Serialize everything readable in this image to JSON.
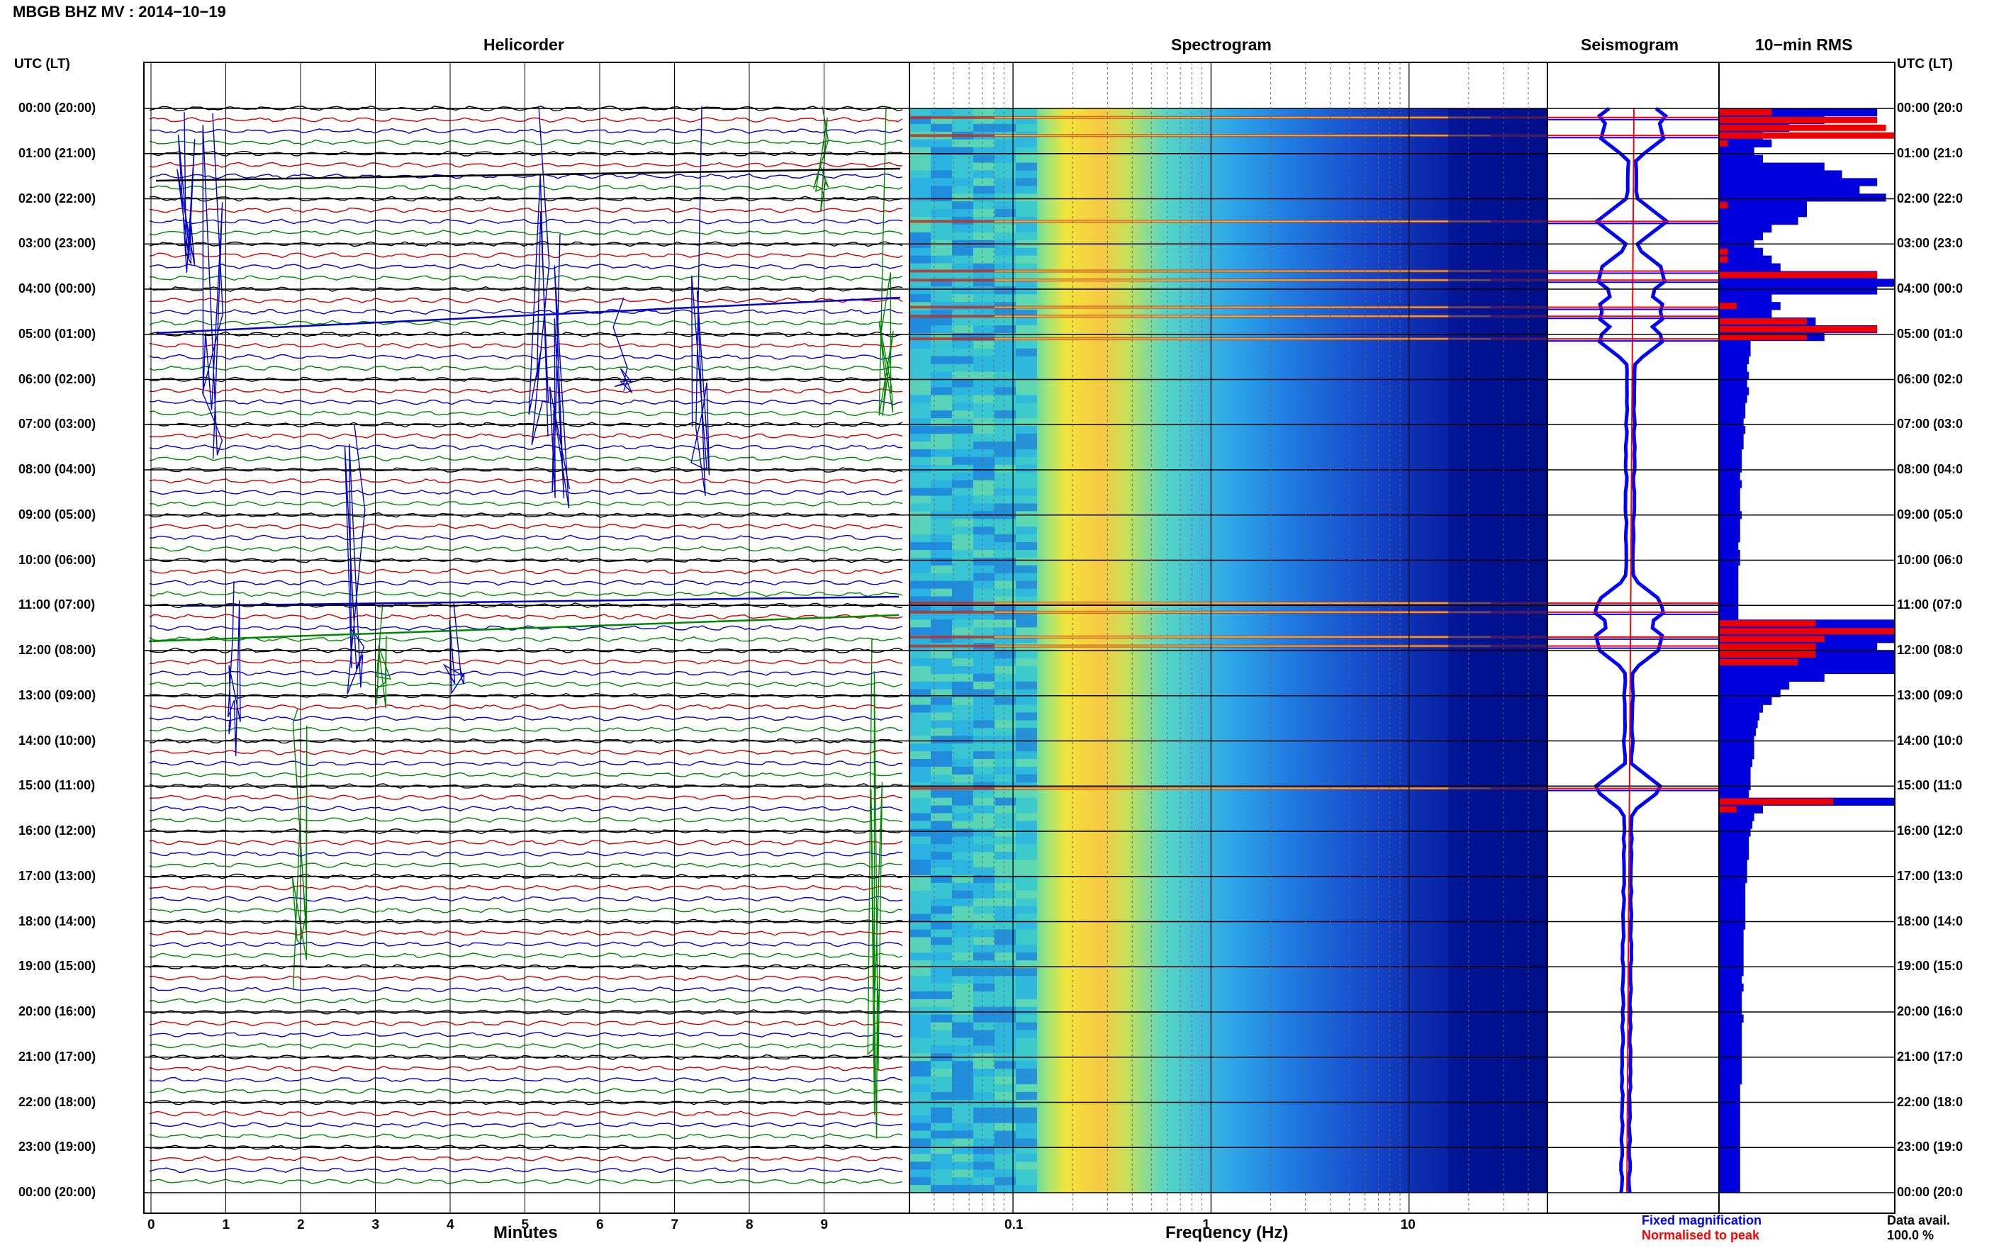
{
  "header": {
    "title": "MBGB BHZ MV : 2014−10−19"
  },
  "panels": {
    "helicorder": "Helicorder",
    "spectrogram": "Spectrogram",
    "seismogram": "Seismogram",
    "rms": "10−min RMS"
  },
  "axis_left_label": "UTC (LT)",
  "axis_right_label": "UTC (LT)",
  "hour_labels": [
    "00:00 (20:00)",
    "01:00 (21:00)",
    "02:00 (22:00)",
    "03:00 (23:00)",
    "04:00 (00:00)",
    "05:00 (01:00)",
    "06:00 (02:00)",
    "07:00 (03:00)",
    "08:00 (04:00)",
    "09:00 (05:00)",
    "10:00 (06:00)",
    "11:00 (07:00)",
    "12:00 (08:00)",
    "13:00 (09:00)",
    "14:00 (10:00)",
    "15:00 (11:00)",
    "16:00 (12:00)",
    "17:00 (13:00)",
    "18:00 (14:00)",
    "19:00 (15:00)",
    "20:00 (16:00)",
    "21:00 (17:00)",
    "22:00 (18:00)",
    "23:00 (19:00)",
    "00:00 (20:00)"
  ],
  "right_hour_labels": [
    "00:00 (20:0",
    "01:00 (21:0",
    "02:00 (22:0",
    "03:00 (23:0",
    "04:00 (00:0",
    "05:00 (01:0",
    "06:00 (02:0",
    "07:00 (03:0",
    "08:00 (04:0",
    "09:00 (05:0",
    "10:00 (06:0",
    "11:00 (07:0",
    "12:00 (08:0",
    "13:00 (09:0",
    "14:00 (10:0",
    "15:00 (11:0",
    "16:00 (12:0",
    "17:00 (13:0",
    "18:00 (14:0",
    "19:00 (15:0",
    "20:00 (16:0",
    "21:00 (17:0",
    "22:00 (18:0",
    "23:00 (19:0",
    "00:00 (20:0"
  ],
  "x_axes": {
    "helicorder": {
      "label": "Minutes",
      "ticks": [
        "0",
        "1",
        "2",
        "3",
        "4",
        "5",
        "6",
        "7",
        "8",
        "9"
      ]
    },
    "spectrogram": {
      "label": "Frequency (Hz)",
      "ticks": [
        "0.1",
        "1",
        "10"
      ],
      "scale": "log"
    }
  },
  "legend": {
    "fixed": "Fixed magnification",
    "normalised": "Normalised to peak",
    "fixed_color": "#0000ff",
    "normalised_color": "#ff0000"
  },
  "data_avail": {
    "label": "Data avail.",
    "value": "100.0 %"
  },
  "colors": {
    "helicorder_traces": [
      "#000000",
      "#cc0000",
      "#0000cc",
      "#008800"
    ],
    "rms_fixed": "#0000dd",
    "rms_normalised": "#ee0000",
    "spectrogram_base": "#000080"
  },
  "chart_data": {
    "type": "heatmap",
    "title": "MBGB BHZ MV : 2014−10−19",
    "xlabel": "Frequency (Hz)",
    "ylabel": "UTC (LT)",
    "xlim": [
      0.03,
      50
    ],
    "x_scale": "log",
    "event_hours": [
      0.2,
      0.6,
      2.5,
      3.6,
      3.8,
      4.4,
      4.6,
      5.1,
      10.95,
      11.15,
      11.7,
      11.9,
      15.05
    ],
    "rms": {
      "fixed": [
        0.9,
        0.6,
        0.4,
        0.25,
        0.3,
        0.2,
        0.25,
        0.6,
        0.7,
        0.9,
        0.8,
        0.95,
        0.5,
        0.5,
        0.45,
        0.3,
        0.25,
        0.2,
        0.25,
        0.3,
        0.35,
        0.9,
        1.0,
        0.9,
        0.3,
        0.35,
        0.3,
        0.55,
        0.9,
        0.6,
        0.18,
        0.18,
        0.17,
        0.16,
        0.17,
        0.16,
        0.17,
        0.16,
        0.15,
        0.15,
        0.14,
        0.15,
        0.14,
        0.14,
        0.13,
        0.13,
        0.13,
        0.12,
        0.13,
        0.12,
        0.12,
        0.12,
        0.13,
        0.12,
        0.12,
        0.12,
        0.11,
        0.12,
        0.12,
        0.11,
        0.11,
        0.11,
        0.11,
        0.11,
        0.11,
        0.11,
        1.0,
        1.0,
        1.0,
        0.9,
        1.0,
        1.0,
        1.0,
        0.6,
        0.4,
        0.35,
        0.3,
        0.25,
        0.23,
        0.22,
        0.21,
        0.2,
        0.2,
        0.2,
        0.19,
        0.18,
        0.18,
        0.18,
        0.17,
        1.0,
        0.25,
        0.2,
        0.19,
        0.18,
        0.17,
        0.17,
        0.17,
        0.16,
        0.16,
        0.16,
        0.15,
        0.15,
        0.15,
        0.15,
        0.15,
        0.15,
        0.14,
        0.14,
        0.14,
        0.14,
        0.14,
        0.14,
        0.13,
        0.14,
        0.13,
        0.13,
        0.13,
        0.14,
        0.13,
        0.13,
        0.13,
        0.13,
        0.13,
        0.13,
        0.13,
        0.13,
        0.12,
        0.12,
        0.12,
        0.12,
        0.12,
        0.12,
        0.12,
        0.12,
        0.12,
        0.12,
        0.12,
        0.12,
        0.12,
        0.12
      ],
      "normalised": [
        0.3,
        0.9,
        0.95,
        1.0,
        0.05,
        0.0,
        0.0,
        0.0,
        0.0,
        0.0,
        0.0,
        0.0,
        0.05,
        0.0,
        0.0,
        0.0,
        0.0,
        0.0,
        0.05,
        0.05,
        0.0,
        0.9,
        0.0,
        0.0,
        0.0,
        0.1,
        0.0,
        0.5,
        0.9,
        0.5,
        0.0,
        0.0,
        0.0,
        0.0,
        0.0,
        0.0,
        0.0,
        0.0,
        0.0,
        0.0,
        0.0,
        0.0,
        0.0,
        0.0,
        0.0,
        0.0,
        0.0,
        0.0,
        0.0,
        0.0,
        0.0,
        0.0,
        0.0,
        0.0,
        0.0,
        0.0,
        0.0,
        0.0,
        0.0,
        0.0,
        0.0,
        0.0,
        0.0,
        0.0,
        0.0,
        0.0,
        0.55,
        1.0,
        0.6,
        0.55,
        0.55,
        0.45,
        0.0,
        0.0,
        0.0,
        0.0,
        0.0,
        0.0,
        0.0,
        0.0,
        0.0,
        0.0,
        0.0,
        0.0,
        0.0,
        0.0,
        0.0,
        0.0,
        0.0,
        0.65,
        0.1,
        0.0,
        0.0,
        0.0,
        0.0,
        0.0,
        0.0,
        0.0,
        0.0,
        0.0,
        0.0,
        0.0,
        0.0,
        0.0,
        0.0,
        0.0,
        0.0,
        0.0,
        0.0,
        0.0,
        0.0,
        0.0,
        0.0,
        0.0,
        0.0,
        0.0,
        0.0,
        0.0,
        0.0,
        0.0,
        0.0,
        0.0,
        0.0,
        0.0,
        0.0,
        0.0,
        0.0,
        0.0,
        0.0,
        0.0,
        0.0,
        0.0,
        0.0,
        0.0,
        0.0,
        0.0,
        0.0,
        0.0,
        0.0,
        0.0
      ]
    }
  }
}
